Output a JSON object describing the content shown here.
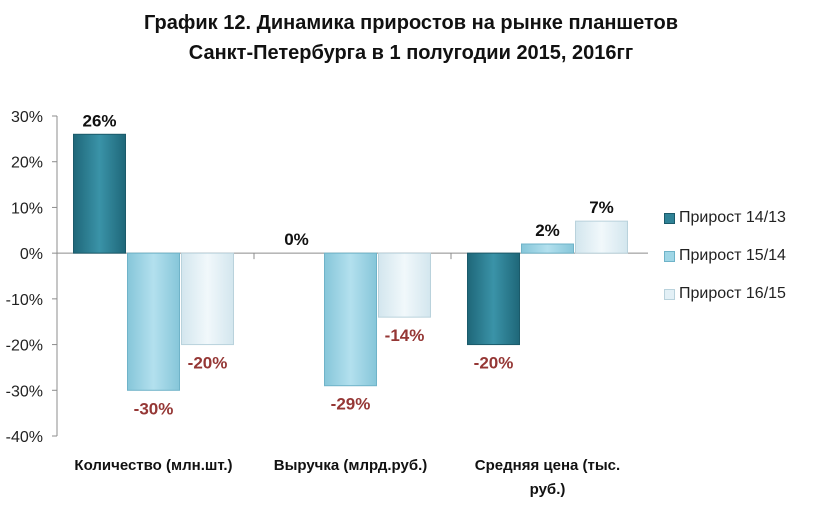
{
  "colors": {
    "series1": "#2f8296",
    "series2": "#9fd6e6",
    "series3": "#e3f0f6",
    "negative_label": "#953735",
    "positive_label": "#111111",
    "axis": "#8c8c8c"
  },
  "chart_data": {
    "type": "bar",
    "title_lines": [
      "График 12. Динамика приростов  на рынке планшетов",
      "Санкт-Петербурга в 1 полугодии 2015, 2016гг"
    ],
    "categories": [
      [
        "Количество (млн.шт.)"
      ],
      [
        "Выручка (млрд.руб.)"
      ],
      [
        "Средняя цена (тыс.",
        "руб.)"
      ]
    ],
    "series": [
      {
        "name": "Прирост 14/13",
        "values": [
          26,
          0,
          -20
        ],
        "labels": [
          "26%",
          "0%",
          "-20%"
        ]
      },
      {
        "name": "Прирост 15/14",
        "values": [
          -30,
          -29,
          2
        ],
        "labels": [
          "-30%",
          "-29%",
          "2%"
        ]
      },
      {
        "name": "Прирост 16/15",
        "values": [
          -20,
          -14,
          7
        ],
        "labels": [
          "-20%",
          "-14%",
          "7%"
        ]
      }
    ],
    "y_ticks": [
      "30%",
      "20%",
      "10%",
      "0%",
      "-10%",
      "-20%",
      "-30%",
      "-40%"
    ],
    "ylim": [
      -40,
      30
    ],
    "legend_position": "right"
  }
}
